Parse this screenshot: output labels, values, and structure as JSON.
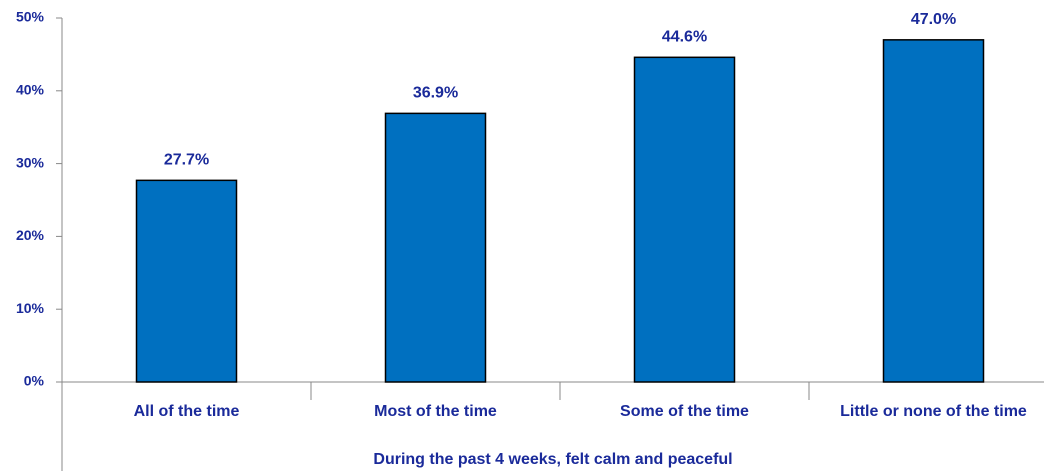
{
  "chart_data": {
    "type": "bar",
    "x_label": "During the past 4 weeks, felt calm and peaceful",
    "categories": [
      "All of the time",
      "Most of the time",
      "Some of the time",
      "Little or none of the time"
    ],
    "values": [
      27.7,
      36.9,
      44.6,
      47.0
    ],
    "value_labels": [
      "27.7%",
      "36.9%",
      "44.6%",
      "47.0%"
    ],
    "color": "#0070c0",
    "ylim": [
      0,
      50
    ],
    "yticks": [
      {
        "value": 0,
        "label": "0%"
      },
      {
        "value": 10,
        "label": "10%"
      },
      {
        "value": 20,
        "label": "20%"
      },
      {
        "value": 30,
        "label": "30%"
      },
      {
        "value": 40,
        "label": "40%"
      },
      {
        "value": 50,
        "label": "50%"
      }
    ],
    "grid": false
  }
}
